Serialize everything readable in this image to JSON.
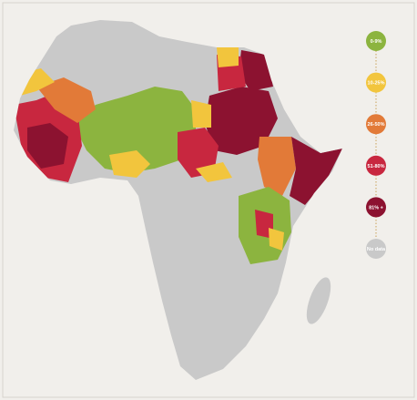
{
  "legend": {
    "items": [
      {
        "label": "0-9%",
        "color": "#8cb43f"
      },
      {
        "label": "10-25%",
        "color": "#f2c53d"
      },
      {
        "label": "26-50%",
        "color": "#e27a38"
      },
      {
        "label": "51-80%",
        "color": "#c8273f"
      },
      {
        "label": "81% +",
        "color": "#8c1230"
      },
      {
        "label": "No data",
        "color": "#c9c9c9"
      }
    ]
  }
}
